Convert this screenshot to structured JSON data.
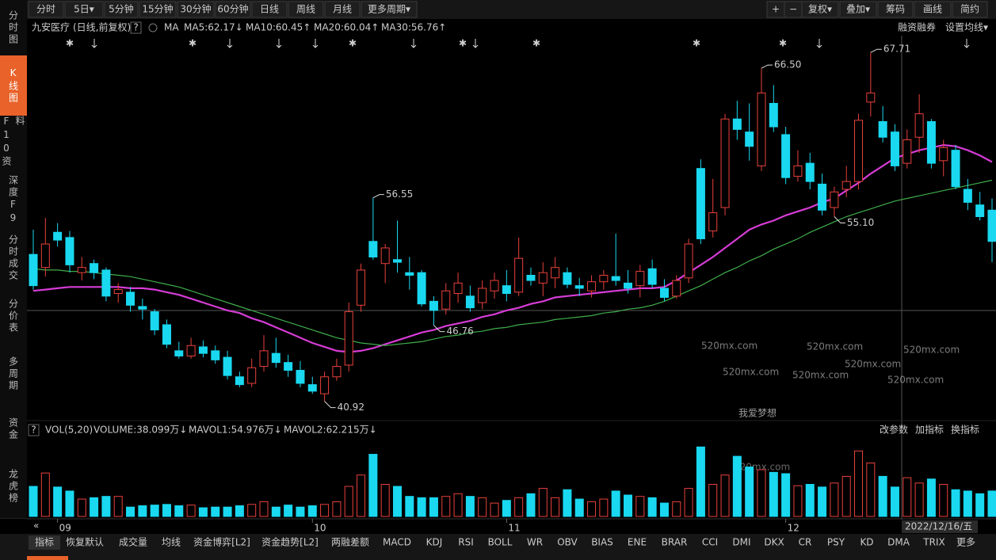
{
  "toolbar": {
    "left": [
      "分时",
      "5日▾",
      "5分钟",
      "15分钟",
      "30分钟",
      "60分钟",
      "日线",
      "周线",
      "月线",
      "更多周期▾"
    ],
    "right": [
      "+",
      "−",
      "复权▾",
      "叠加▾",
      "筹码",
      "画线",
      "简约"
    ]
  },
  "sidebar": [
    "分时图",
    "K线图",
    "F10资料",
    "深度F9",
    "分时成交",
    "分价表",
    "多周期",
    "资金",
    "龙虎榜"
  ],
  "info": {
    "stock": "九安医疗",
    "mode": "(日线,前复权)",
    "help": "?",
    "ma": "MA",
    "ma5": "MA5:62.17↓",
    "ma10": "MA10:60.45↑",
    "ma20": "MA20:60.04↑",
    "ma30": "MA30:56.76↑",
    "right": [
      "融资融券",
      "设置均线▾"
    ]
  },
  "chart_data": {
    "type": "candlestick",
    "up_color": "#e8413c",
    "down_color": "#19d8f0",
    "ylim": [
      39.5,
      69.0
    ],
    "categories": [
      null,
      null,
      "09",
      null,
      null,
      null,
      null,
      null,
      null,
      null,
      null,
      null,
      null,
      null,
      null,
      null,
      null,
      null,
      null,
      null,
      null,
      null,
      null,
      "10",
      null,
      null,
      null,
      null,
      null,
      null,
      null,
      null,
      null,
      null,
      null,
      null,
      null,
      null,
      null,
      "11",
      null,
      null,
      null,
      null,
      null,
      null,
      null,
      null,
      null,
      null,
      null,
      null,
      null,
      null,
      null,
      null,
      null,
      null,
      null,
      null,
      null,
      null,
      "12",
      null,
      null,
      null,
      null,
      null,
      null,
      null,
      null,
      null,
      null,
      null,
      null,
      null,
      null,
      null,
      null,
      null
    ],
    "candles": [
      [
        52.2,
        54.1,
        49.5,
        49.8
      ],
      [
        51.2,
        55.0,
        50.5,
        53.0
      ],
      [
        53.9,
        54.6,
        52.8,
        53.3
      ],
      [
        53.5,
        54.0,
        50.8,
        51.4
      ],
      [
        50.8,
        52.0,
        50.2,
        51.2
      ],
      [
        51.5,
        51.8,
        50.3,
        50.8
      ],
      [
        51.0,
        51.2,
        48.6,
        49.0
      ],
      [
        49.2,
        50.0,
        48.5,
        49.5
      ],
      [
        49.3,
        49.7,
        47.8,
        48.3
      ],
      [
        48.2,
        48.8,
        47.2,
        48.0
      ],
      [
        47.8,
        48.0,
        46.0,
        46.4
      ],
      [
        46.8,
        47.2,
        45.0,
        45.3
      ],
      [
        44.8,
        45.5,
        44.2,
        44.4
      ],
      [
        44.4,
        45.8,
        44.2,
        45.2
      ],
      [
        45.1,
        45.6,
        44.3,
        44.6
      ],
      [
        44.8,
        45.2,
        43.8,
        44.1
      ],
      [
        44.3,
        44.8,
        42.6,
        42.9
      ],
      [
        42.8,
        43.2,
        42.0,
        42.2
      ],
      [
        42.3,
        44.2,
        42.0,
        43.5
      ],
      [
        43.6,
        46.0,
        43.2,
        44.8
      ],
      [
        44.6,
        45.8,
        43.5,
        43.9
      ],
      [
        43.9,
        44.5,
        42.8,
        43.3
      ],
      [
        43.3,
        44.0,
        42.0,
        42.3
      ],
      [
        42.2,
        42.8,
        41.5,
        41.7
      ],
      [
        41.5,
        43.2,
        40.92,
        42.8
      ],
      [
        42.8,
        44.2,
        42.5,
        43.6
      ],
      [
        43.7,
        48.5,
        43.2,
        47.8
      ],
      [
        48.3,
        51.5,
        47.8,
        51.0
      ],
      [
        53.2,
        56.55,
        51.8,
        52.0
      ],
      [
        51.5,
        53.0,
        50.0,
        52.7
      ],
      [
        51.8,
        54.8,
        50.8,
        51.6
      ],
      [
        50.8,
        52.0,
        49.5,
        50.6
      ],
      [
        50.8,
        51.0,
        48.2,
        48.4
      ],
      [
        48.6,
        49.0,
        46.76,
        47.9
      ],
      [
        48.0,
        50.0,
        47.6,
        49.4
      ],
      [
        49.2,
        50.8,
        48.5,
        50.0
      ],
      [
        49.0,
        49.8,
        47.8,
        48.1
      ],
      [
        48.5,
        50.2,
        48.0,
        49.6
      ],
      [
        49.4,
        50.8,
        48.8,
        50.2
      ],
      [
        49.8,
        51.0,
        48.6,
        49.2
      ],
      [
        49.3,
        53.5,
        49.0,
        51.9
      ],
      [
        50.6,
        51.2,
        49.8,
        50.2
      ],
      [
        50.0,
        51.6,
        49.0,
        50.8
      ],
      [
        50.4,
        52.0,
        49.6,
        51.2
      ],
      [
        50.8,
        51.2,
        49.6,
        49.9
      ],
      [
        49.8,
        50.4,
        49.0,
        49.6
      ],
      [
        49.4,
        50.6,
        48.9,
        50.1
      ],
      [
        50.1,
        51.0,
        49.5,
        50.6
      ],
      [
        50.5,
        53.8,
        49.8,
        50.2
      ],
      [
        50.0,
        51.0,
        49.2,
        49.6
      ],
      [
        49.8,
        51.4,
        48.9,
        50.9
      ],
      [
        51.1,
        51.8,
        49.6,
        49.9
      ],
      [
        49.6,
        50.3,
        48.6,
        48.9
      ],
      [
        49.0,
        50.6,
        48.8,
        50.2
      ],
      [
        50.4,
        53.4,
        50.0,
        53.0
      ],
      [
        58.8,
        59.5,
        53.0,
        53.4
      ],
      [
        54.0,
        58.0,
        53.5,
        55.4
      ],
      [
        55.8,
        63.0,
        55.2,
        62.6
      ],
      [
        62.6,
        64.0,
        61.0,
        61.8
      ],
      [
        61.6,
        63.8,
        59.4,
        60.5
      ],
      [
        59.0,
        66.5,
        58.6,
        64.6
      ],
      [
        63.8,
        65.2,
        61.6,
        62.0
      ],
      [
        61.4,
        62.0,
        57.6,
        58.1
      ],
      [
        58.2,
        60.2,
        57.8,
        59.0
      ],
      [
        59.2,
        60.0,
        57.2,
        57.8
      ],
      [
        57.6,
        58.4,
        55.2,
        55.6
      ],
      [
        55.8,
        57.4,
        55.1,
        57.0
      ],
      [
        57.2,
        59.0,
        56.6,
        57.8
      ],
      [
        57.8,
        63.0,
        57.2,
        62.5
      ],
      [
        63.9,
        67.71,
        62.8,
        64.6
      ],
      [
        62.4,
        63.6,
        60.8,
        61.2
      ],
      [
        61.6,
        62.2,
        58.6,
        59.0
      ],
      [
        59.2,
        61.8,
        58.8,
        61.0
      ],
      [
        61.2,
        64.5,
        60.0,
        63.0
      ],
      [
        62.4,
        62.6,
        58.8,
        59.2
      ],
      [
        59.4,
        61.0,
        58.2,
        60.4
      ],
      [
        60.2,
        60.6,
        57.2,
        57.4
      ],
      [
        57.2,
        58.0,
        55.6,
        56.2
      ],
      [
        56.0,
        57.0,
        54.8,
        55.1
      ],
      [
        55.6,
        56.5,
        51.6,
        53.2
      ]
    ],
    "lines": [
      {
        "color": "#d63cd6",
        "values": [
          49.4,
          49.5,
          49.6,
          49.7,
          49.7,
          49.7,
          49.7,
          49.7,
          49.6,
          49.6,
          49.5,
          49.3,
          49.1,
          48.8,
          48.5,
          48.2,
          47.9,
          47.7,
          47.3,
          47.0,
          46.6,
          46.2,
          45.8,
          45.4,
          45.1,
          44.8,
          44.7,
          44.8,
          45.0,
          45.3,
          45.6,
          45.9,
          46.2,
          46.4,
          46.7,
          46.9,
          47.1,
          47.4,
          47.6,
          47.9,
          48.1,
          48.4,
          48.6,
          48.9,
          49.0,
          49.1,
          49.2,
          49.3,
          49.4,
          49.5,
          49.6,
          49.6,
          49.7,
          50.2,
          50.8,
          51.4,
          52.0,
          52.7,
          53.4,
          54.1,
          54.5,
          54.8,
          55.2,
          55.5,
          55.8,
          56.2,
          56.5,
          57.1,
          57.7,
          58.4,
          59.0,
          59.6,
          59.9,
          60.2,
          60.4,
          60.6,
          60.5,
          60.2,
          59.8,
          59.3
        ]
      },
      {
        "color": "#3fae4a",
        "values": [
          51.1,
          51.0,
          51.0,
          50.9,
          50.9,
          50.8,
          50.7,
          50.6,
          50.5,
          50.3,
          50.1,
          49.9,
          49.7,
          49.4,
          49.1,
          48.8,
          48.5,
          48.2,
          47.9,
          47.6,
          47.3,
          47.0,
          46.7,
          46.4,
          46.1,
          45.8,
          45.6,
          45.4,
          45.3,
          45.2,
          45.3,
          45.4,
          45.5,
          45.7,
          45.9,
          46.0,
          46.2,
          46.3,
          46.5,
          46.6,
          46.8,
          46.9,
          47.0,
          47.2,
          47.3,
          47.4,
          47.5,
          47.7,
          47.8,
          48.0,
          48.1,
          48.3,
          48.6,
          49.0,
          49.4,
          49.8,
          50.3,
          50.8,
          51.2,
          51.7,
          52.1,
          52.6,
          53.0,
          53.4,
          53.9,
          54.3,
          54.7,
          55.1,
          55.4,
          55.7,
          56.0,
          56.3,
          56.5,
          56.7,
          56.9,
          57.1,
          57.3,
          57.5,
          57.7,
          57.9
        ]
      }
    ],
    "annotations": [
      {
        "value": 66.5,
        "label": "66.50"
      },
      {
        "value": 67.71,
        "label": "67.71"
      },
      {
        "value": 56.55,
        "label": "56.55"
      },
      {
        "value": 46.76,
        "label": "46.76"
      },
      {
        "value": 40.92,
        "label": "40.92"
      },
      {
        "value": 55.1,
        "label": "55.10"
      }
    ],
    "date_label": "2022/12/16/五"
  },
  "volume_chart": {
    "type": "bar",
    "ylim": [
      0,
      115
    ],
    "values": [
      45,
      65,
      44,
      38,
      26,
      28,
      30,
      30,
      14,
      16,
      17,
      18,
      16,
      17,
      13,
      14,
      14,
      16,
      18,
      22,
      14,
      17,
      14,
      16,
      18,
      22,
      45,
      62,
      93,
      48,
      45,
      30,
      28,
      28,
      30,
      34,
      30,
      28,
      20,
      24,
      28,
      34,
      42,
      28,
      40,
      26,
      22,
      26,
      38,
      32,
      30,
      28,
      20,
      22,
      42,
      104,
      48,
      62,
      90,
      74,
      70,
      66,
      64,
      46,
      48,
      44,
      50,
      60,
      98,
      80,
      60,
      44,
      58,
      50,
      56,
      48,
      40,
      38,
      34,
      38.099
    ],
    "help": "?",
    "vol": "VOL(5,20)",
    "volume": "VOLUME:38.099万↓",
    "mavol1": "MAVOL1:54.976万↓",
    "mavol2": "MAVOL2:62.215万↓",
    "right": [
      "改参数",
      "加指标",
      "换指标"
    ]
  },
  "tabs": [
    "指标",
    "恢复默认",
    "成交量",
    "均线",
    "资金博弈[L2]",
    "资金趋势[L2]",
    "两融差额",
    "MACD",
    "KDJ",
    "RSI",
    "BOLL",
    "WR",
    "OBV",
    "BIAS",
    "ENE",
    "BRAR",
    "CCI",
    "DMI",
    "DKX",
    "CR",
    "PSY",
    "KD",
    "DMA",
    "TRIX",
    "更多"
  ],
  "watermarks": [
    "我爱梦想",
    "520mx.com"
  ]
}
